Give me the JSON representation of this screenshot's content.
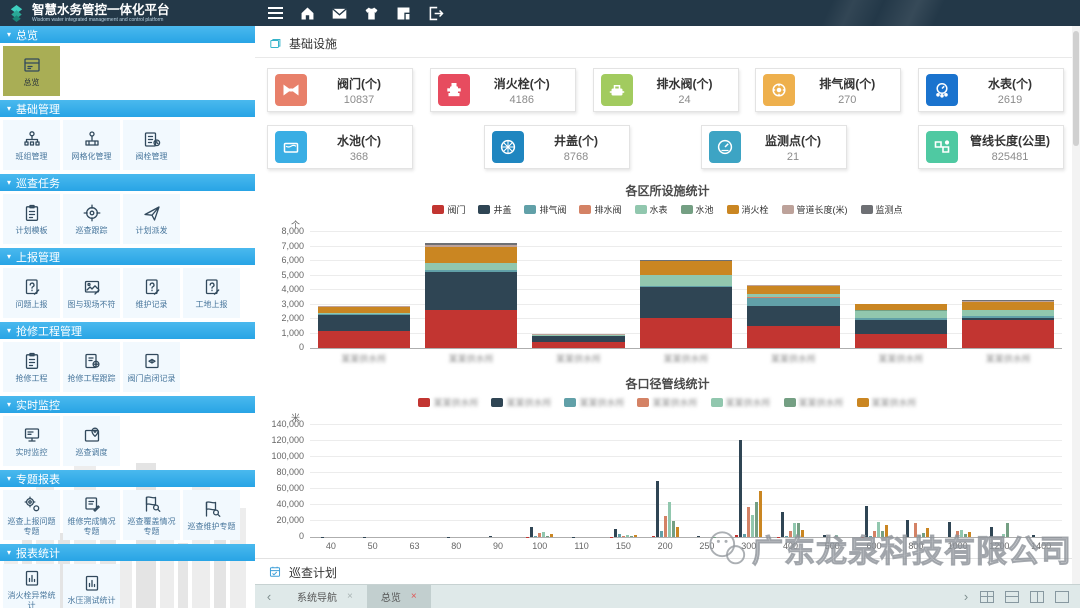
{
  "header": {
    "title": "智慧水务管控一体化平台",
    "subtitle": "Wisdom water integrated management and control platform",
    "icons": [
      "menu-icon",
      "home-icon",
      "mail-icon",
      "shirt-icon",
      "panels-icon",
      "logout-icon"
    ]
  },
  "sidebar": {
    "sections": [
      {
        "label": "总览",
        "items": [
          {
            "label": "总览",
            "icon": "dashboard",
            "active": true
          }
        ]
      },
      {
        "label": "基础管理",
        "items": [
          {
            "label": "班组管理",
            "icon": "org"
          },
          {
            "label": "网格化管理",
            "icon": "group"
          },
          {
            "label": "阀栓管理",
            "icon": "clipclock"
          }
        ]
      },
      {
        "label": "巡查任务",
        "items": [
          {
            "label": "计划模板",
            "icon": "clipboard"
          },
          {
            "label": "巡查跟踪",
            "icon": "target"
          },
          {
            "label": "计划派发",
            "icon": "send"
          }
        ]
      },
      {
        "label": "上报管理",
        "items": [
          {
            "label": "问题上报",
            "icon": "docq"
          },
          {
            "label": "图与现场不符",
            "icon": "image"
          },
          {
            "label": "维护记录",
            "icon": "docq"
          },
          {
            "label": "工地上报",
            "icon": "docq"
          }
        ]
      },
      {
        "label": "抢修工程管理",
        "items": [
          {
            "label": "抢修工程",
            "icon": "clipboard"
          },
          {
            "label": "抢修工程跟踪",
            "icon": "doctarget"
          },
          {
            "label": "阀门启闭记录",
            "icon": "valverec"
          }
        ]
      },
      {
        "label": "实时监控",
        "items": [
          {
            "label": "实时监控",
            "icon": "monitor"
          },
          {
            "label": "巡查调度",
            "icon": "mappin"
          }
        ]
      },
      {
        "label": "专题报表",
        "items": [
          {
            "label": "巡查上报问题专题",
            "icon": "gearflag"
          },
          {
            "label": "维修完成情况专题",
            "icon": "docedit"
          },
          {
            "label": "巡查覆盖情况专题",
            "icon": "flagsearch"
          },
          {
            "label": "巡查维护专题",
            "icon": "flagsearch"
          }
        ]
      },
      {
        "label": "报表统计",
        "items": [
          {
            "label": "消火栓异常统计",
            "icon": "docchart"
          },
          {
            "label": "水压测试统计",
            "icon": "docchart"
          }
        ]
      }
    ]
  },
  "main": {
    "section_title": "基础设施",
    "bottom_section_title": "巡查计划",
    "watermark": "广东龙泉科技有限公司",
    "cards_row1": [
      {
        "label": "阀门(个)",
        "value": "10837",
        "color": "#e8806a",
        "icon": "valve-icon"
      },
      {
        "label": "消火栓(个)",
        "value": "4186",
        "color": "#e74c5f",
        "icon": "hydrant-icon"
      },
      {
        "label": "排水阀(个)",
        "value": "24",
        "color": "#a2cb5f",
        "icon": "drain-valve-icon"
      },
      {
        "label": "排气阀(个)",
        "value": "270",
        "color": "#eeb04d",
        "icon": "air-valve-icon"
      },
      {
        "label": "水表(个)",
        "value": "2619",
        "color": "#1a73ce",
        "icon": "water-meter-icon"
      }
    ],
    "cards_row2": [
      {
        "label": "水池(个)",
        "value": "368",
        "color": "#3aaee4",
        "icon": "pool-icon"
      },
      {
        "label": "井盖(个)",
        "value": "8768",
        "color": "#1f86c0",
        "icon": "manhole-icon"
      },
      {
        "label": "监测点(个)",
        "value": "21",
        "color": "#3da4c4",
        "icon": "gauge-icon"
      },
      {
        "label": "管线长度(公里)",
        "value": "825481",
        "color": "#4fc9a2",
        "icon": "pipeline-icon"
      }
    ]
  },
  "chart_data": [
    {
      "type": "bar",
      "stacked": true,
      "title": "各区所设施统计",
      "unit": "个",
      "ylim": [
        0,
        8000
      ],
      "ytick": 1000,
      "legend_position": "top",
      "grid": true,
      "categories_redacted": true,
      "categories": [
        "某某供水所",
        "某某供水所",
        "某某供水所",
        "某某供水所",
        "某某供水所",
        "某某供水所",
        "某某供水所"
      ],
      "series": [
        {
          "name": "阀门",
          "color": "#c23531",
          "values": [
            1200,
            2600,
            450,
            2100,
            1550,
            1000,
            1950
          ]
        },
        {
          "name": "井盖",
          "color": "#2f4554",
          "values": [
            1100,
            2650,
            350,
            2100,
            1350,
            950,
            150
          ]
        },
        {
          "name": "排气阀",
          "color": "#61a0a8",
          "values": [
            40,
            100,
            30,
            80,
            550,
            100,
            80
          ]
        },
        {
          "name": "排水阀",
          "color": "#d48265",
          "values": [
            10,
            50,
            20,
            20,
            50,
            30,
            30
          ]
        },
        {
          "name": "水表",
          "color": "#91c7ae",
          "values": [
            60,
            450,
            40,
            700,
            200,
            500,
            400
          ]
        },
        {
          "name": "水池",
          "color": "#749f83",
          "values": [
            10,
            50,
            10,
            50,
            50,
            40,
            40
          ]
        },
        {
          "name": "消火栓",
          "color": "#ca8622",
          "values": [
            440,
            1050,
            30,
            950,
            550,
            400,
            550
          ]
        },
        {
          "name": "管道长度(米)",
          "color": "#bda29a",
          "values": [
            10,
            150,
            50,
            30,
            30,
            20,
            50
          ]
        },
        {
          "name": "监测点",
          "color": "#6e7074",
          "values": [
            20,
            150,
            20,
            20,
            20,
            10,
            50
          ]
        }
      ]
    },
    {
      "type": "bar",
      "stacked": false,
      "title": "各口径管线统计",
      "unit": "米",
      "ylim": [
        0,
        140000
      ],
      "ytick": 20000,
      "legend_position": "top",
      "grid": true,
      "legend_redacted": true,
      "categories": [
        "40",
        "50",
        "63",
        "80",
        "90",
        "100",
        "110",
        "150",
        "200",
        "250",
        "300",
        "400",
        "500",
        "600",
        "800",
        "1000",
        "1200",
        "1400"
      ],
      "series": [
        {
          "name": "某某供水所",
          "color": "#c23531",
          "values": [
            0,
            0,
            0,
            0,
            0,
            500,
            0,
            300,
            1000,
            0,
            3000,
            500,
            0,
            500,
            0,
            0,
            0,
            0
          ]
        },
        {
          "name": "某某供水所",
          "color": "#2f4554",
          "values": [
            300,
            200,
            0,
            300,
            800,
            12000,
            200,
            10000,
            70500,
            800,
            121000,
            31000,
            3000,
            39000,
            21000,
            19000,
            12000,
            2500
          ]
        },
        {
          "name": "某某供水所",
          "color": "#61a0a8",
          "values": [
            0,
            0,
            0,
            0,
            0,
            800,
            0,
            3500,
            8000,
            0,
            3500,
            800,
            0,
            800,
            0,
            0,
            0,
            0
          ]
        },
        {
          "name": "某某供水所",
          "color": "#d48265",
          "values": [
            0,
            0,
            0,
            0,
            0,
            5000,
            0,
            1000,
            26500,
            0,
            38000,
            7000,
            0,
            8000,
            18000,
            8000,
            0,
            0
          ]
        },
        {
          "name": "某某供水所",
          "color": "#91c7ae",
          "values": [
            0,
            0,
            0,
            0,
            0,
            6500,
            0,
            3000,
            44000,
            0,
            28000,
            17000,
            2000,
            19000,
            3000,
            9000,
            3500,
            0
          ]
        },
        {
          "name": "某某供水所",
          "color": "#749f83",
          "values": [
            0,
            0,
            0,
            0,
            0,
            1500,
            0,
            800,
            20000,
            500,
            44000,
            17000,
            0,
            7000,
            5000,
            4000,
            18000,
            0
          ]
        },
        {
          "name": "某某供水所",
          "color": "#ca8622",
          "values": [
            0,
            0,
            0,
            0,
            0,
            4000,
            0,
            2000,
            13000,
            0,
            58000,
            9000,
            0,
            15000,
            11000,
            6000,
            0,
            0
          ]
        }
      ]
    }
  ],
  "tabbar": {
    "prev_icon": "‹",
    "next_icon": "›",
    "tabs": [
      {
        "label": "系统导航",
        "close": "×",
        "active": false
      },
      {
        "label": "总览",
        "close": "×",
        "active": true
      }
    ],
    "window_icons": [
      "grid-layout-icon",
      "hsplit-layout-icon",
      "vsplit-layout-icon",
      "single-layout-icon"
    ]
  }
}
